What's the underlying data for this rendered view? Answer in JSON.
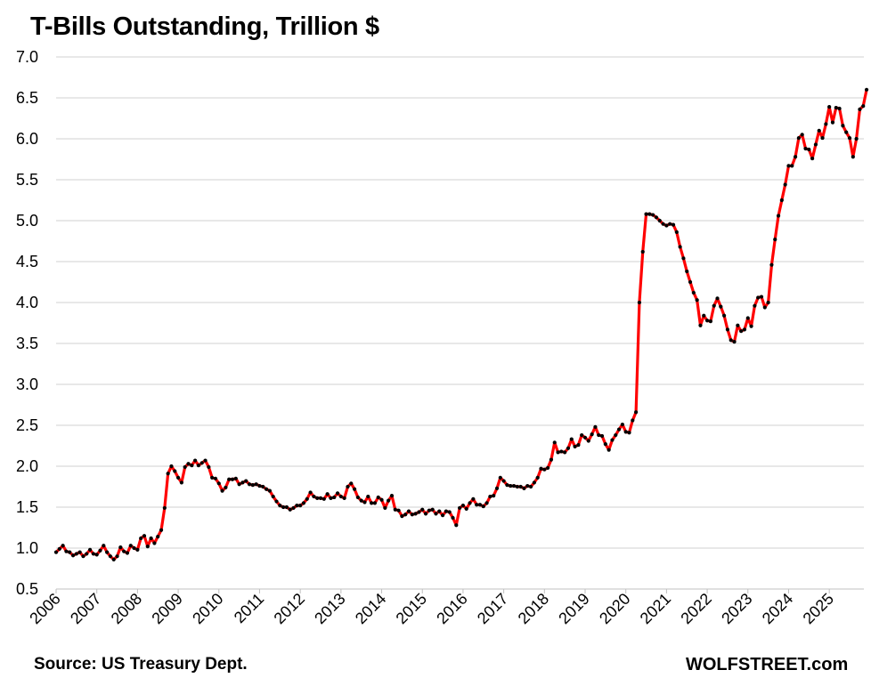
{
  "header": {
    "title": "T-Bills Outstanding, Trillion $"
  },
  "footer": {
    "source": "Source: US Treasury Dept.",
    "brand": "WOLFSTREET.com"
  },
  "colors": {
    "line": "#ff0000",
    "marker": "#000000",
    "grid": "#d9d9d9"
  },
  "chart_data": {
    "type": "line",
    "title": "T-Bills Outstanding, Trillion $",
    "xlabel": "",
    "ylabel": "",
    "ylim": [
      0.5,
      7.0
    ],
    "y_ticks": [
      "0.5",
      "1.0",
      "1.5",
      "2.0",
      "2.5",
      "3.0",
      "3.5",
      "4.0",
      "4.5",
      "5.0",
      "5.5",
      "6.0",
      "6.5",
      "7.0"
    ],
    "x_ticks": [
      "2006",
      "2007",
      "2008",
      "2009",
      "2010",
      "2011",
      "2012",
      "2013",
      "2014",
      "2015",
      "2016",
      "2017",
      "2018",
      "2019",
      "2020",
      "2021",
      "2022",
      "2023",
      "2024",
      "2025"
    ],
    "x_range": [
      2006.0,
      2025.85
    ],
    "grid": true,
    "legend": "none",
    "series": [
      {
        "x_start": 2006.0,
        "step_months": 1,
        "values": [
          0.95,
          0.99,
          1.03,
          0.96,
          0.95,
          0.91,
          0.93,
          0.95,
          0.9,
          0.93,
          0.98,
          0.93,
          0.92,
          0.97,
          1.03,
          0.95,
          0.9,
          0.86,
          0.9,
          1.01,
          0.96,
          0.94,
          1.03,
          1.0,
          0.98,
          1.12,
          1.15,
          1.02,
          1.12,
          1.06,
          1.14,
          1.22,
          1.49,
          1.91,
          2.0,
          1.94,
          1.86,
          1.8,
          1.99,
          2.03,
          2.01,
          2.07,
          2.01,
          2.04,
          2.07,
          1.99,
          1.86,
          1.85,
          1.79,
          1.7,
          1.74,
          1.84,
          1.84,
          1.85,
          1.78,
          1.8,
          1.82,
          1.78,
          1.77,
          1.78,
          1.76,
          1.75,
          1.72,
          1.7,
          1.63,
          1.57,
          1.52,
          1.5,
          1.5,
          1.47,
          1.49,
          1.52,
          1.52,
          1.55,
          1.6,
          1.68,
          1.63,
          1.61,
          1.61,
          1.6,
          1.66,
          1.61,
          1.62,
          1.67,
          1.63,
          1.61,
          1.75,
          1.79,
          1.72,
          1.62,
          1.58,
          1.56,
          1.63,
          1.55,
          1.55,
          1.62,
          1.59,
          1.49,
          1.58,
          1.64,
          1.47,
          1.46,
          1.39,
          1.41,
          1.45,
          1.41,
          1.42,
          1.44,
          1.47,
          1.42,
          1.46,
          1.47,
          1.42,
          1.45,
          1.4,
          1.45,
          1.44,
          1.37,
          1.28,
          1.49,
          1.52,
          1.48,
          1.55,
          1.6,
          1.53,
          1.53,
          1.51,
          1.55,
          1.63,
          1.64,
          1.73,
          1.86,
          1.82,
          1.77,
          1.76,
          1.76,
          1.75,
          1.75,
          1.73,
          1.76,
          1.75,
          1.8,
          1.86,
          1.97,
          1.96,
          1.98,
          2.08,
          2.29,
          2.17,
          2.18,
          2.17,
          2.22,
          2.33,
          2.24,
          2.26,
          2.38,
          2.35,
          2.31,
          2.39,
          2.48,
          2.38,
          2.37,
          2.27,
          2.2,
          2.32,
          2.38,
          2.45,
          2.51,
          2.42,
          2.41,
          2.56,
          2.66,
          4.0,
          4.62,
          5.08,
          5.08,
          5.07,
          5.04,
          5.0,
          4.96,
          4.94,
          4.96,
          4.95,
          4.86,
          4.68,
          4.54,
          4.38,
          4.25,
          4.12,
          4.03,
          3.72,
          3.84,
          3.78,
          3.77,
          3.96,
          4.05,
          3.95,
          3.84,
          3.67,
          3.54,
          3.52,
          3.72,
          3.65,
          3.67,
          3.81,
          3.71,
          3.96,
          4.06,
          4.07,
          3.94,
          4.0,
          4.46,
          4.77,
          5.06,
          5.25,
          5.44,
          5.67,
          5.67,
          5.78,
          6.01,
          6.05,
          5.88,
          5.87,
          5.76,
          5.93,
          6.1,
          6.01,
          6.18,
          6.39,
          6.2,
          6.38,
          6.37,
          6.16,
          6.08,
          6.01,
          5.78,
          6.0,
          6.36,
          6.4,
          6.6
        ]
      }
    ]
  }
}
